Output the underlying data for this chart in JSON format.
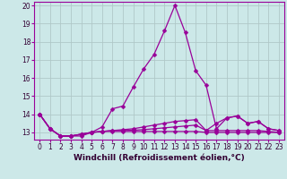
{
  "xlabel": "Windchill (Refroidissement éolien,°C)",
  "x": [
    0,
    1,
    2,
    3,
    4,
    5,
    6,
    7,
    8,
    9,
    10,
    11,
    12,
    13,
    14,
    15,
    16,
    17,
    18,
    19,
    20,
    21,
    22,
    23
  ],
  "line1": [
    14.0,
    13.2,
    12.8,
    12.8,
    12.8,
    13.0,
    13.3,
    14.3,
    14.45,
    15.5,
    16.5,
    17.3,
    18.6,
    20.0,
    18.5,
    16.4,
    15.6,
    13.2,
    13.8,
    13.9,
    13.5,
    13.6,
    13.2,
    13.1
  ],
  "line2": [
    14.0,
    13.2,
    12.8,
    12.8,
    12.9,
    13.0,
    13.05,
    13.1,
    13.15,
    13.2,
    13.3,
    13.4,
    13.5,
    13.6,
    13.65,
    13.7,
    13.1,
    13.5,
    13.8,
    13.9,
    13.5,
    13.6,
    13.2,
    13.1
  ],
  "line3": [
    14.0,
    13.2,
    12.8,
    12.8,
    12.9,
    13.0,
    13.05,
    13.1,
    13.1,
    13.12,
    13.15,
    13.2,
    13.25,
    13.3,
    13.35,
    13.4,
    13.1,
    13.1,
    13.1,
    13.1,
    13.1,
    13.1,
    13.05,
    13.0
  ],
  "line4": [
    14.0,
    13.2,
    12.8,
    12.8,
    12.9,
    13.0,
    13.05,
    13.05,
    13.05,
    13.05,
    13.05,
    13.05,
    13.05,
    13.05,
    13.05,
    13.05,
    13.0,
    13.0,
    13.0,
    13.0,
    13.0,
    13.0,
    13.0,
    13.0
  ],
  "line_color": "#990099",
  "bg_color": "#cce8e8",
  "grid_color": "#b0c8c8",
  "ylim": [
    12.6,
    20.2
  ],
  "yticks": [
    13,
    14,
    15,
    16,
    17,
    18,
    19,
    20
  ],
  "xticks": [
    0,
    1,
    2,
    3,
    4,
    5,
    6,
    7,
    8,
    9,
    10,
    11,
    12,
    13,
    14,
    15,
    16,
    17,
    18,
    19,
    20,
    21,
    22,
    23
  ],
  "marker": "D",
  "markersize": 2.5,
  "linewidth": 0.9,
  "tick_fontsize": 5.5,
  "xlabel_fontsize": 6.5
}
